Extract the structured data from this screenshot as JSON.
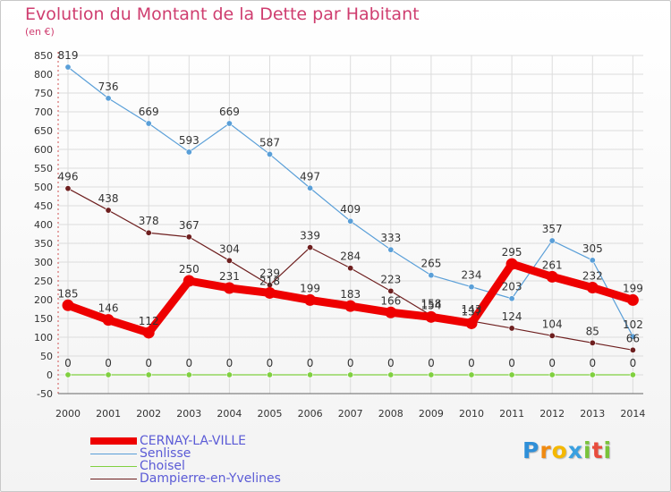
{
  "chart_data": {
    "type": "line",
    "title": "Evolution du Montant de la Dette par Habitant",
    "subtitle": "(en €)",
    "x": [
      "2000",
      "2001",
      "2002",
      "2003",
      "2004",
      "2005",
      "2006",
      "2007",
      "2008",
      "2009",
      "2010",
      "2011",
      "2012",
      "2013",
      "2014"
    ],
    "ylim": [
      -50,
      850
    ],
    "yticks": [
      -50,
      0,
      50,
      100,
      150,
      200,
      250,
      300,
      350,
      400,
      450,
      500,
      550,
      600,
      650,
      700,
      750,
      800,
      850
    ],
    "grid": true,
    "legend_position": "bottom-left",
    "series": [
      {
        "name": "CERNAY-LA-VILLE",
        "color": "#ee0000",
        "values": [
          185,
          146,
          112,
          250,
          231,
          218,
          199,
          183,
          166,
          154,
          137,
          295,
          261,
          232,
          199
        ],
        "labels": [
          "185",
          "146",
          "112",
          "250",
          "231",
          "218",
          "199",
          "183",
          "166",
          "154",
          "137",
          "295",
          "261",
          "232",
          "199"
        ]
      },
      {
        "name": "Senlisse",
        "color": "#5a9fd8",
        "values": [
          819,
          736,
          669,
          593,
          669,
          587,
          497,
          409,
          333,
          265,
          234,
          203,
          357,
          305,
          102
        ],
        "labels": [
          "819",
          "736",
          "669",
          "593",
          "669",
          "587",
          "497",
          "409",
          "333",
          "265",
          "234",
          "203",
          "357",
          "305",
          "102"
        ]
      },
      {
        "name": "Choisel",
        "color": "#80d040",
        "values": [
          0,
          0,
          0,
          0,
          0,
          0,
          0,
          0,
          0,
          0,
          0,
          0,
          0,
          0,
          0
        ],
        "labels": [
          "0",
          "0",
          "0",
          "0",
          "0",
          "0",
          "0",
          "0",
          "0",
          "0",
          "0",
          "0",
          "0",
          "0",
          "0"
        ]
      },
      {
        "name": "Dampierre-en-Yvelines",
        "color": "#6e1f1f",
        "values": [
          496,
          438,
          378,
          367,
          304,
          239,
          339,
          284,
          223,
          158,
          143,
          124,
          104,
          85,
          66
        ],
        "labels": [
          "496",
          "438",
          "378",
          "367",
          "304",
          "239",
          "339",
          "284",
          "223",
          "158",
          "143",
          "124",
          "104",
          "85",
          "66"
        ]
      }
    ]
  },
  "brand": {
    "letters": [
      "P",
      "r",
      "o",
      "x",
      "i",
      "t",
      "i"
    ],
    "colors": [
      "#2f8fd8",
      "#f08a10",
      "#f5b800",
      "#3aa0e0",
      "#79c33a",
      "#e84c3d",
      "#79c33a"
    ]
  }
}
